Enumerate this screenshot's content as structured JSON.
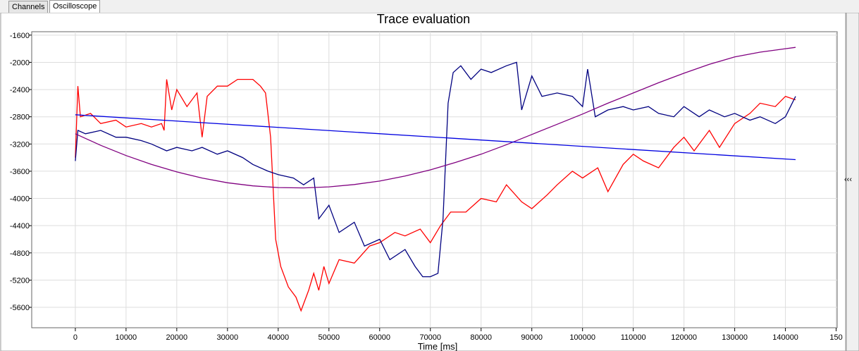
{
  "tabs": [
    "Channels",
    "Oscilloscope"
  ],
  "chart_data": {
    "type": "line",
    "title": "Trace evaluation",
    "x_label": "Time [ms]",
    "xlim": [
      -8600,
      150200
    ],
    "ylim": [
      -5900,
      -1550
    ],
    "xticks": [
      0,
      10000,
      20000,
      30000,
      40000,
      50000,
      60000,
      70000,
      80000,
      90000,
      100000,
      110000,
      120000,
      130000,
      140000,
      {
        "value": 150000,
        "label": "150"
      }
    ],
    "yticks": [
      -1600,
      -2000,
      -2400,
      -2800,
      -3200,
      -3600,
      -4000,
      -4400,
      -4800,
      -5200,
      -5600
    ],
    "grid": true,
    "series": [
      {
        "color": "#ff0000",
        "x": [
          0,
          500,
          1000,
          3000,
          5000,
          8000,
          10000,
          13000,
          15000,
          17000,
          17500,
          18000,
          19000,
          20000,
          22000,
          24000,
          25000,
          26000,
          28000,
          30000,
          32000,
          35000,
          36500,
          37500,
          38500,
          39500,
          40500,
          42000,
          43500,
          44500,
          46000,
          47000,
          48000,
          49000,
          50000,
          52000,
          55000,
          58000,
          60000,
          63000,
          65000,
          68000,
          70000,
          72000,
          74000,
          77000,
          80000,
          83000,
          85000,
          88000,
          90000,
          93000,
          95000,
          98000,
          100000,
          103000,
          105000,
          108000,
          110000,
          112000,
          115000,
          118000,
          120000,
          122000,
          125000,
          127000,
          130000,
          133000,
          135000,
          138000,
          140000,
          142000
        ],
        "values": [
          -3400,
          -2350,
          -2800,
          -2750,
          -2900,
          -2850,
          -2950,
          -2900,
          -2950,
          -2900,
          -3000,
          -2250,
          -2700,
          -2400,
          -2650,
          -2450,
          -3100,
          -2500,
          -2350,
          -2350,
          -2250,
          -2250,
          -2350,
          -2450,
          -3100,
          -4600,
          -5000,
          -5300,
          -5450,
          -5650,
          -5350,
          -5100,
          -5350,
          -5000,
          -5250,
          -4900,
          -4950,
          -4700,
          -4650,
          -4500,
          -4550,
          -4450,
          -4650,
          -4400,
          -4200,
          -4200,
          -4000,
          -4050,
          -3800,
          -4050,
          -4150,
          -3950,
          -3800,
          -3600,
          -3700,
          -3550,
          -3900,
          -3500,
          -3350,
          -3450,
          -3550,
          -3250,
          -3100,
          -3300,
          -3000,
          -3250,
          -2900,
          -2750,
          -2600,
          -2650,
          -2500,
          -2550
        ]
      },
      {
        "color": "#000080",
        "x": [
          0,
          500,
          2000,
          5000,
          8000,
          10000,
          13000,
          15000,
          18000,
          20000,
          23000,
          25000,
          28000,
          30000,
          33000,
          35000,
          38000,
          40000,
          43000,
          45000,
          47000,
          48000,
          50000,
          52000,
          55000,
          57000,
          60000,
          62000,
          65000,
          67000,
          68500,
          70000,
          71500,
          72500,
          73500,
          74500,
          76000,
          78000,
          80000,
          82000,
          85000,
          87000,
          88000,
          90000,
          92000,
          95000,
          98000,
          100000,
          101000,
          102500,
          105000,
          108000,
          110000,
          113000,
          115000,
          118000,
          120000,
          123000,
          125000,
          128000,
          130000,
          133000,
          135000,
          138000,
          140000,
          142000
        ],
        "values": [
          -3450,
          -3000,
          -3050,
          -3000,
          -3100,
          -3100,
          -3150,
          -3200,
          -3300,
          -3250,
          -3300,
          -3250,
          -3350,
          -3300,
          -3400,
          -3500,
          -3600,
          -3650,
          -3700,
          -3800,
          -3700,
          -4300,
          -4100,
          -4500,
          -4350,
          -4700,
          -4600,
          -4900,
          -4750,
          -5000,
          -5150,
          -5150,
          -5100,
          -4300,
          -2600,
          -2150,
          -2050,
          -2250,
          -2100,
          -2150,
          -2050,
          -2000,
          -2700,
          -2200,
          -2500,
          -2450,
          -2500,
          -2650,
          -2100,
          -2800,
          -2700,
          -2650,
          -2700,
          -2650,
          -2750,
          -2800,
          -2650,
          -2800,
          -2700,
          -2800,
          -2750,
          -2850,
          -2800,
          -2900,
          -2800,
          -2500
        ]
      },
      {
        "color": "#800080",
        "x": [
          0,
          5000,
          10000,
          15000,
          20000,
          25000,
          30000,
          35000,
          40000,
          45000,
          50000,
          55000,
          60000,
          65000,
          70000,
          75000,
          80000,
          85000,
          90000,
          95000,
          100000,
          105000,
          110000,
          115000,
          120000,
          125000,
          130000,
          135000,
          140000,
          142000
        ],
        "values": [
          -3050,
          -3220,
          -3370,
          -3500,
          -3610,
          -3700,
          -3770,
          -3815,
          -3840,
          -3845,
          -3830,
          -3795,
          -3745,
          -3670,
          -3580,
          -3470,
          -3350,
          -3210,
          -3060,
          -2910,
          -2760,
          -2600,
          -2450,
          -2300,
          -2160,
          -2030,
          -1920,
          -1850,
          -1800,
          -1780
        ]
      },
      {
        "color": "#0000e0",
        "x": [
          0,
          142000
        ],
        "values": [
          -2770,
          -3430
        ]
      }
    ]
  }
}
